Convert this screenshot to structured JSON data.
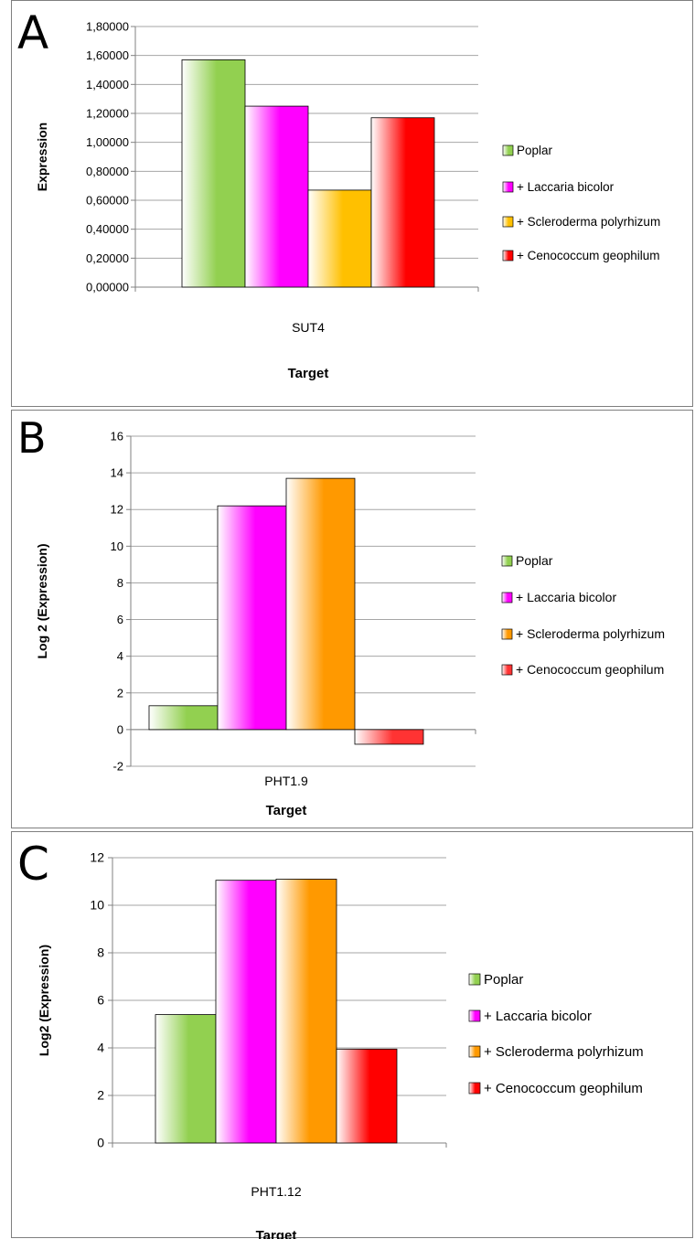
{
  "chart_data": [
    {
      "panel_label": "A",
      "type": "bar",
      "categories": [
        "SUT4"
      ],
      "xlabel": "Target",
      "ylabel": "Expression",
      "ylim": [
        0,
        1.8
      ],
      "yticks": [
        "0,00000",
        "0,20000",
        "0,40000",
        "0,60000",
        "0,80000",
        "1,00000",
        "1,20000",
        "1,40000",
        "1,60000",
        "1,80000"
      ],
      "grid": true,
      "legend_position": "right",
      "series": [
        {
          "name": "Poplar",
          "values": [
            1.57
          ],
          "color": "#92d050"
        },
        {
          "name": "+ Laccaria bicolor",
          "values": [
            1.25
          ],
          "color": "#ff00ff"
        },
        {
          "name": "+ Scleroderma polyrhizum",
          "values": [
            0.67
          ],
          "color": "#ffc000"
        },
        {
          "name": "+ Cenococcum geophilum",
          "values": [
            1.17
          ],
          "color": "#ff0000"
        }
      ]
    },
    {
      "panel_label": "B",
      "type": "bar",
      "categories": [
        "PHT1.9"
      ],
      "xlabel": "Target",
      "ylabel": "Log 2 (Expression)",
      "ylim": [
        -2,
        16
      ],
      "yticks": [
        "-2",
        "0",
        "2",
        "4",
        "6",
        "8",
        "10",
        "12",
        "14",
        "16"
      ],
      "grid": true,
      "legend_position": "right",
      "series": [
        {
          "name": "Poplar",
          "values": [
            1.3
          ],
          "color": "#92d050"
        },
        {
          "name": "+ Laccaria bicolor",
          "values": [
            12.2
          ],
          "color": "#ff00ff"
        },
        {
          "name": "+ Scleroderma polyrhizum",
          "values": [
            13.7
          ],
          "color": "#ff9900"
        },
        {
          "name": "+ Cenococcum geophilum",
          "values": [
            -0.8
          ],
          "color": "#ff3333"
        }
      ]
    },
    {
      "panel_label": "C",
      "type": "bar",
      "categories": [
        "PHT1.12"
      ],
      "xlabel": "Target",
      "ylabel": "Log2 (Expression)",
      "ylim": [
        0,
        12
      ],
      "yticks": [
        "0",
        "2",
        "4",
        "6",
        "8",
        "10",
        "12"
      ],
      "grid": true,
      "legend_position": "right",
      "series": [
        {
          "name": "Poplar",
          "values": [
            5.4
          ],
          "color": "#92d050"
        },
        {
          "name": "+ Laccaria bicolor",
          "values": [
            11.05
          ],
          "color": "#ff00ff"
        },
        {
          "name": "+ Scleroderma polyrhizum",
          "values": [
            11.1
          ],
          "color": "#ff9900"
        },
        {
          "name": "+ Cenococcum geophilum",
          "values": [
            3.95
          ],
          "color": "#ff0000"
        }
      ]
    }
  ]
}
